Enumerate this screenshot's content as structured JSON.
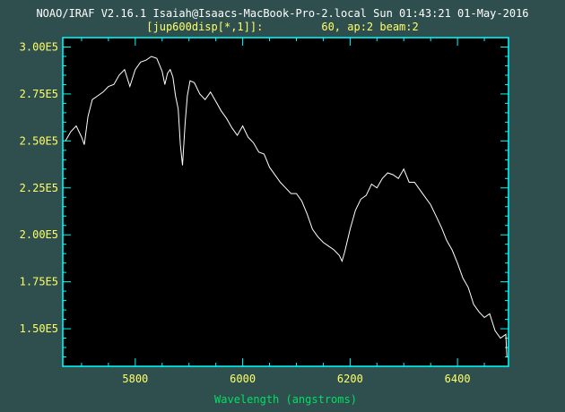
{
  "header": {
    "line1": "NOAO/IRAF V2.16.1 Isaiah@Isaacs-MacBook-Pro-2.local Sun 01:43:21 01-May-2016",
    "line2": "[jup600disp[*,1]]:         60, ap:2 beam:2"
  },
  "colors": {
    "background": "#2f4f4f",
    "plot_area": "#000000",
    "frame": "#00ffff",
    "spectrum": "#ffffff",
    "tick_labels": "#ffff66",
    "title": "#ffffff",
    "subtitle": "#ffff66",
    "xlabel": "#00e060"
  },
  "chart_data": {
    "type": "line",
    "title": "",
    "xlabel": "Wavelength (angstroms)",
    "ylabel": "",
    "xlim": [
      5665,
      6495
    ],
    "ylim": [
      130000,
      305000
    ],
    "xticks": [
      5800,
      6000,
      6200,
      6400
    ],
    "xtick_labels": [
      "5800",
      "6000",
      "6200",
      "6400"
    ],
    "yticks": [
      150000,
      175000,
      200000,
      225000,
      250000,
      275000,
      300000
    ],
    "ytick_labels": [
      "1.50E5",
      "1.75E5",
      "2.00E5",
      "2.25E5",
      "2.50E5",
      "2.75E5",
      "3.00E5"
    ],
    "grid": false,
    "series": [
      {
        "x": [
          5670,
          5680,
          5690,
          5700,
          5705,
          5712,
          5720,
          5730,
          5740,
          5750,
          5760,
          5770,
          5780,
          5790,
          5800,
          5810,
          5820,
          5830,
          5840,
          5850,
          5855,
          5860,
          5865,
          5870,
          5875,
          5880,
          5884,
          5888,
          5893,
          5897,
          5902,
          5910,
          5920,
          5930,
          5940,
          5950,
          5960,
          5970,
          5980,
          5990,
          6000,
          6010,
          6020,
          6030,
          6040,
          6050,
          6060,
          6070,
          6080,
          6090,
          6100,
          6110,
          6120,
          6130,
          6140,
          6150,
          6160,
          6170,
          6180,
          6185,
          6190,
          6200,
          6210,
          6220,
          6230,
          6240,
          6250,
          6260,
          6270,
          6280,
          6290,
          6300,
          6310,
          6320,
          6330,
          6340,
          6350,
          6360,
          6370,
          6380,
          6390,
          6400,
          6410,
          6420,
          6430,
          6440,
          6450,
          6460,
          6470,
          6480,
          6490,
          6492
        ],
        "y": [
          250000,
          255000,
          258000,
          252000,
          248000,
          263000,
          272000,
          274000,
          276000,
          279000,
          280000,
          285000,
          288000,
          279000,
          288000,
          292000,
          293000,
          295000,
          294000,
          287000,
          280000,
          286000,
          288000,
          284000,
          274000,
          267000,
          248000,
          237000,
          260000,
          274000,
          282000,
          281000,
          275000,
          272000,
          276000,
          271000,
          266000,
          262000,
          257000,
          253000,
          258000,
          252000,
          249000,
          244000,
          243000,
          236000,
          232000,
          228000,
          225000,
          222000,
          222000,
          218000,
          211000,
          203000,
          199000,
          196000,
          194000,
          192000,
          189000,
          186000,
          191000,
          203000,
          213000,
          219000,
          221000,
          227000,
          225000,
          230000,
          233000,
          232000,
          230000,
          235000,
          228000,
          228000,
          224000,
          220000,
          216000,
          210000,
          204000,
          197000,
          192000,
          185000,
          177000,
          172000,
          163000,
          159000,
          156000,
          158000,
          149000,
          145000,
          147000,
          135000
        ]
      }
    ]
  }
}
